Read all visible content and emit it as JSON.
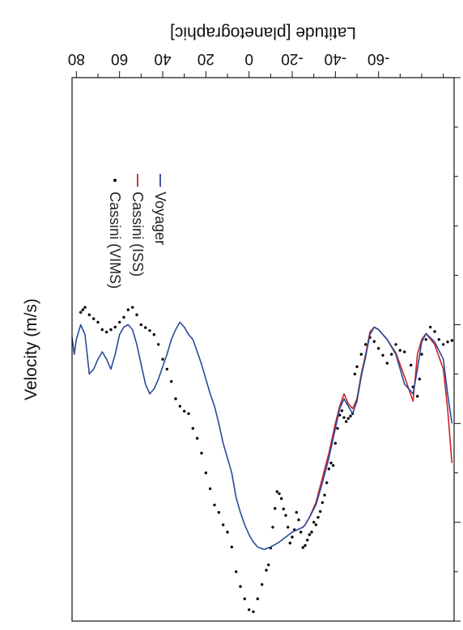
{
  "chart_data": {
    "type": "scatter",
    "title": "",
    "xlabel": "Velocity (m/s)",
    "ylabel": "Latitude [planetographic]",
    "xlim": [
      -500,
      600
    ],
    "ylim": [
      -95,
      82
    ],
    "x_ticks": [
      -500,
      0,
      200,
      400,
      600
    ],
    "y_ticks": [
      -60,
      -40,
      -20,
      0,
      20,
      40,
      60,
      80
    ],
    "grid": false,
    "legend_position": "top-right",
    "series": [
      {
        "name": "Cassini (VIMS)",
        "kind": "points",
        "color": "#000000",
        "points": [
          [
            32,
            -94
          ],
          [
            35,
            -92
          ],
          [
            40,
            -90
          ],
          [
            30,
            -88
          ],
          [
            14,
            -86
          ],
          [
            5,
            -84
          ],
          [
            30,
            -82
          ],
          [
            60,
            -80
          ],
          [
            110,
            -79
          ],
          [
            145,
            -78
          ],
          [
            126,
            -76
          ],
          [
            82,
            -75
          ],
          [
            55,
            -72
          ],
          [
            52,
            -70
          ],
          [
            40,
            -68
          ],
          [
            60,
            -66
          ],
          [
            78,
            -64
          ],
          [
            62,
            -62
          ],
          [
            48,
            -60
          ],
          [
            34,
            -58
          ],
          [
            26,
            -56
          ],
          [
            40,
            -54
          ],
          [
            60,
            -52
          ],
          [
            85,
            -50
          ],
          [
            100,
            -49
          ],
          [
            180,
            -48
          ],
          [
            185,
            -47
          ],
          [
            190,
            -46
          ],
          [
            196,
            -45
          ],
          [
            188,
            -44
          ],
          [
            174,
            -43
          ],
          [
            183,
            -42
          ],
          [
            210,
            -41
          ],
          [
            240,
            -40
          ],
          [
            285,
            -39
          ],
          [
            280,
            -38
          ],
          [
            292,
            -37
          ],
          [
            320,
            -36
          ],
          [
            345,
            -35
          ],
          [
            360,
            -34
          ],
          [
            378,
            -33
          ],
          [
            390,
            -32
          ],
          [
            405,
            -31
          ],
          [
            400,
            -30
          ],
          [
            420,
            -29
          ],
          [
            425,
            -28
          ],
          [
            436,
            -27
          ],
          [
            447,
            -26
          ],
          [
            451,
            -25
          ],
          [
            420,
            -24
          ],
          [
            395,
            -23
          ],
          [
            380,
            -22
          ],
          [
            415,
            -21
          ],
          [
            430,
            -20
          ],
          [
            442,
            -19
          ],
          [
            410,
            -18
          ],
          [
            386,
            -17
          ],
          [
            373,
            -16
          ],
          [
            352,
            -15
          ],
          [
            342,
            -14
          ],
          [
            338,
            -13
          ],
          [
            372,
            -12
          ],
          [
            410,
            -11
          ],
          [
            452,
            -10
          ],
          [
            486,
            -9
          ],
          [
            497,
            -8
          ],
          [
            526,
            -6
          ],
          [
            555,
            -4
          ],
          [
            581,
            -2
          ],
          [
            577,
            0
          ],
          [
            555,
            2
          ],
          [
            530,
            4
          ],
          [
            500,
            6
          ],
          [
            450,
            8
          ],
          [
            420,
            10
          ],
          [
            405,
            12
          ],
          [
            380,
            14
          ],
          [
            365,
            16
          ],
          [
            332,
            18
          ],
          [
            300,
            20
          ],
          [
            260,
            22
          ],
          [
            230,
            24
          ],
          [
            210,
            26
          ],
          [
            180,
            28
          ],
          [
            175,
            30
          ],
          [
            165,
            32
          ],
          [
            150,
            34
          ],
          [
            115,
            36
          ],
          [
            90,
            38
          ],
          [
            70,
            40
          ],
          [
            40,
            42
          ],
          [
            20,
            44
          ],
          [
            12,
            46
          ],
          [
            6,
            48
          ],
          [
            0,
            50
          ],
          [
            -20,
            52
          ],
          [
            -35,
            54
          ],
          [
            -30,
            56
          ],
          [
            -15,
            58
          ],
          [
            -5,
            60
          ],
          [
            5,
            62
          ],
          [
            10,
            64
          ],
          [
            15,
            66
          ],
          [
            10,
            68
          ],
          [
            -5,
            70
          ],
          [
            -12,
            72
          ],
          [
            -20,
            74
          ],
          [
            -35,
            76
          ],
          [
            -30,
            77
          ],
          [
            -25,
            78
          ]
        ]
      },
      {
        "name": "Cassini (ISS)",
        "kind": "line",
        "color": "#cc2222",
        "points": [
          [
            280,
            -94
          ],
          [
            170,
            -92
          ],
          [
            90,
            -90
          ],
          [
            40,
            -86
          ],
          [
            18,
            -82
          ],
          [
            30,
            -80
          ],
          [
            60,
            -78
          ],
          [
            155,
            -76
          ],
          [
            105,
            -72
          ],
          [
            57,
            -68
          ],
          [
            30,
            -64
          ],
          [
            10,
            -60
          ],
          [
            5,
            -58
          ],
          [
            15,
            -56
          ],
          [
            60,
            -54
          ],
          [
            100,
            -52
          ],
          [
            150,
            -50
          ],
          [
            170,
            -48
          ],
          [
            160,
            -46
          ],
          [
            140,
            -44
          ],
          [
            165,
            -42
          ],
          [
            200,
            -40
          ],
          [
            260,
            -37
          ],
          [
            310,
            -34
          ],
          [
            360,
            -31
          ],
          [
            390,
            -28
          ],
          [
            405,
            -26
          ],
          [
            410,
            -25
          ]
        ]
      },
      {
        "name": "Voyager",
        "kind": "line",
        "color": "#2a4a9a",
        "points": [
          [
            200,
            -94
          ],
          [
            140,
            -92
          ],
          [
            70,
            -90
          ],
          [
            35,
            -86
          ],
          [
            18,
            -82
          ],
          [
            35,
            -80
          ],
          [
            90,
            -78
          ],
          [
            140,
            -76
          ],
          [
            120,
            -72
          ],
          [
            60,
            -68
          ],
          [
            30,
            -64
          ],
          [
            10,
            -60
          ],
          [
            5,
            -58
          ],
          [
            20,
            -56
          ],
          [
            65,
            -54
          ],
          [
            105,
            -52
          ],
          [
            155,
            -50
          ],
          [
            180,
            -48
          ],
          [
            165,
            -46
          ],
          [
            150,
            -44
          ],
          [
            170,
            -42
          ],
          [
            210,
            -40
          ],
          [
            270,
            -37
          ],
          [
            320,
            -34
          ],
          [
            365,
            -31
          ],
          [
            390,
            -28
          ],
          [
            405,
            -26
          ],
          [
            410,
            -25
          ],
          [
            420,
            -20
          ],
          [
            440,
            -14
          ],
          [
            450,
            -10
          ],
          [
            455,
            -7
          ],
          [
            450,
            -4
          ],
          [
            440,
            -2
          ],
          [
            425,
            0
          ],
          [
            405,
            2
          ],
          [
            380,
            4
          ],
          [
            350,
            6
          ],
          [
            300,
            8
          ],
          [
            270,
            10
          ],
          [
            240,
            12
          ],
          [
            200,
            14
          ],
          [
            165,
            16
          ],
          [
            140,
            18
          ],
          [
            110,
            20
          ],
          [
            80,
            22
          ],
          [
            55,
            24
          ],
          [
            30,
            26
          ],
          [
            20,
            28
          ],
          [
            5,
            30
          ],
          [
            -5,
            32
          ],
          [
            10,
            34
          ],
          [
            30,
            36
          ],
          [
            60,
            38
          ],
          [
            85,
            40
          ],
          [
            110,
            42
          ],
          [
            130,
            44
          ],
          [
            140,
            46
          ],
          [
            120,
            48
          ],
          [
            80,
            50
          ],
          [
            40,
            52
          ],
          [
            10,
            54
          ],
          [
            0,
            56
          ],
          [
            5,
            58
          ],
          [
            20,
            60
          ],
          [
            60,
            62
          ],
          [
            90,
            64
          ],
          [
            70,
            66
          ],
          [
            55,
            68
          ],
          [
            70,
            70
          ],
          [
            90,
            72
          ],
          [
            100,
            74
          ],
          [
            60,
            75
          ],
          [
            20,
            76
          ],
          [
            0,
            78
          ],
          [
            30,
            80
          ],
          [
            60,
            81
          ],
          [
            25,
            82
          ]
        ]
      }
    ]
  }
}
